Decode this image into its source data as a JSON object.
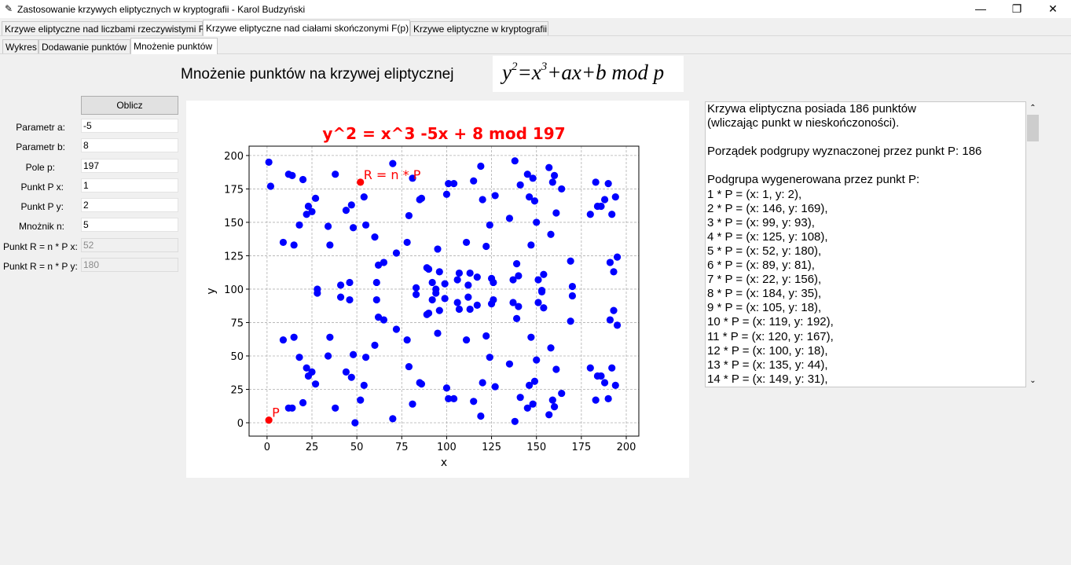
{
  "window": {
    "title": "Zastosowanie krzywych eliptycznych w kryptografii - Karol Budzyński",
    "minimize_glyph": "—",
    "maximize_glyph": "❐",
    "close_glyph": "✕"
  },
  "tabs": [
    {
      "label": "Krzywe eliptyczne nad liczbami rzeczywistymi R"
    },
    {
      "label": "Krzywe eliptyczne nad ciałami skończonymi F(p)"
    },
    {
      "label": "Krzywe eliptyczne w kryptografii"
    }
  ],
  "subtabs": [
    {
      "label": "Wykres"
    },
    {
      "label": "Dodawanie punktów"
    },
    {
      "label": "Mnożenie punktów"
    }
  ],
  "heading": "Mnożenie punktów na krzywej eliptycznej",
  "formula": {
    "y": "y",
    "y_exp": "2",
    "eq": "=",
    "x": "x",
    "x_exp": "3",
    "rest": "+ax+b mod p"
  },
  "compute_button": "Oblicz",
  "params": [
    {
      "label": "Parametr a:",
      "value": "-5"
    },
    {
      "label": "Parametr b:",
      "value": "8"
    },
    {
      "label": "Pole p:",
      "value": "197"
    },
    {
      "label": "Punkt P  x:",
      "value": "1"
    },
    {
      "label": "Punkt P  y:",
      "value": "2"
    },
    {
      "label": "Mnożnik n:",
      "value": "5"
    },
    {
      "label": "Punkt R = n * P  x:",
      "value": "52"
    },
    {
      "label": "Punkt R = n * P  y:",
      "value": "180"
    }
  ],
  "output_lines": [
    "Krzywa eliptyczna posiada 186 punktów",
    "(wliczając punkt w nieskończoności).",
    "",
    "Porządek podgrupy wyznaczonej przez punkt P: 186",
    "",
    "Podgrupa wygenerowana przez punkt P:",
    "1 * P = (x: 1, y: 2),",
    "2 * P = (x: 146, y: 169),",
    "3 * P = (x: 99, y: 93),",
    "4 * P = (x: 125, y: 108),",
    "5 * P = (x: 52, y: 180),",
    "6 * P = (x: 89, y: 81),",
    "7 * P = (x: 22, y: 156),",
    "8 * P = (x: 184, y: 35),",
    "9 * P = (x: 105, y: 18),",
    "10 * P = (x: 119, y: 192),",
    "11 * P = (x: 120, y: 167),",
    "12 * P = (x: 100, y: 18),",
    "13 * P = (x: 135, y: 44),",
    "14 * P = (x: 149, y: 31),"
  ],
  "chart_data": {
    "type": "scatter",
    "title": "y^2 = x^3 -5x + 8 mod 197",
    "title_color": "#ff0000",
    "xlabel": "x",
    "ylabel": "y",
    "xlim": [
      -10,
      207
    ],
    "ylim": [
      -10,
      207
    ],
    "xticks": [
      0,
      25,
      50,
      75,
      100,
      125,
      150,
      175,
      200
    ],
    "yticks": [
      0,
      25,
      50,
      75,
      100,
      125,
      150,
      175,
      200
    ],
    "grid": true,
    "point_color": "#0000ff",
    "highlight_color": "#ff0000",
    "points": [
      [
        1,
        195
      ],
      [
        2,
        177
      ],
      [
        9,
        62
      ],
      [
        9,
        135
      ],
      [
        12,
        186
      ],
      [
        12,
        11
      ],
      [
        14,
        185
      ],
      [
        14,
        11
      ],
      [
        15,
        64
      ],
      [
        15,
        133
      ],
      [
        18,
        49
      ],
      [
        18,
        148
      ],
      [
        20,
        182
      ],
      [
        20,
        15
      ],
      [
        22,
        41
      ],
      [
        22,
        156
      ],
      [
        23,
        162
      ],
      [
        23,
        35
      ],
      [
        25,
        38
      ],
      [
        25,
        158
      ],
      [
        27,
        168
      ],
      [
        27,
        29
      ],
      [
        28,
        100
      ],
      [
        28,
        97
      ],
      [
        34,
        147
      ],
      [
        34,
        50
      ],
      [
        35,
        64
      ],
      [
        35,
        133
      ],
      [
        38,
        11
      ],
      [
        38,
        186
      ],
      [
        41,
        103
      ],
      [
        41,
        94
      ],
      [
        44,
        159
      ],
      [
        44,
        38
      ],
      [
        46,
        92
      ],
      [
        46,
        105
      ],
      [
        47,
        163
      ],
      [
        47,
        34
      ],
      [
        48,
        146
      ],
      [
        48,
        51
      ],
      [
        49,
        0
      ],
      [
        52,
        17
      ],
      [
        54,
        169
      ],
      [
        54,
        28
      ],
      [
        55,
        148
      ],
      [
        55,
        49
      ],
      [
        60,
        58
      ],
      [
        60,
        139
      ],
      [
        61,
        92
      ],
      [
        61,
        105
      ],
      [
        62,
        79
      ],
      [
        62,
        118
      ],
      [
        65,
        120
      ],
      [
        65,
        77
      ],
      [
        70,
        3
      ],
      [
        70,
        194
      ],
      [
        72,
        70
      ],
      [
        72,
        127
      ],
      [
        78,
        62
      ],
      [
        78,
        135
      ],
      [
        79,
        155
      ],
      [
        79,
        42
      ],
      [
        81,
        183
      ],
      [
        81,
        14
      ],
      [
        83,
        101
      ],
      [
        83,
        96
      ],
      [
        85,
        167
      ],
      [
        85,
        30
      ],
      [
        86,
        168
      ],
      [
        86,
        29
      ],
      [
        89,
        81
      ],
      [
        89,
        116
      ],
      [
        90,
        115
      ],
      [
        90,
        82
      ],
      [
        92,
        105
      ],
      [
        92,
        92
      ],
      [
        94,
        97
      ],
      [
        94,
        100
      ],
      [
        95,
        67
      ],
      [
        95,
        130
      ],
      [
        96,
        113
      ],
      [
        96,
        84
      ],
      [
        99,
        93
      ],
      [
        99,
        104
      ],
      [
        100,
        26
      ],
      [
        100,
        171
      ],
      [
        101,
        179
      ],
      [
        101,
        18
      ],
      [
        104,
        18
      ],
      [
        104,
        179
      ],
      [
        106,
        107
      ],
      [
        106,
        90
      ],
      [
        107,
        85
      ],
      [
        107,
        112
      ],
      [
        111,
        62
      ],
      [
        111,
        135
      ],
      [
        112,
        103
      ],
      [
        112,
        94
      ],
      [
        113,
        85
      ],
      [
        113,
        112
      ],
      [
        115,
        181
      ],
      [
        115,
        16
      ],
      [
        117,
        109
      ],
      [
        117,
        88
      ],
      [
        119,
        5
      ],
      [
        119,
        192
      ],
      [
        120,
        167
      ],
      [
        120,
        30
      ],
      [
        122,
        65
      ],
      [
        122,
        132
      ],
      [
        124,
        148
      ],
      [
        124,
        49
      ],
      [
        125,
        108
      ],
      [
        125,
        89
      ],
      [
        126,
        92
      ],
      [
        126,
        105
      ],
      [
        127,
        27
      ],
      [
        127,
        170
      ],
      [
        135,
        153
      ],
      [
        135,
        44
      ],
      [
        137,
        90
      ],
      [
        137,
        107
      ],
      [
        138,
        1
      ],
      [
        138,
        196
      ],
      [
        139,
        78
      ],
      [
        139,
        119
      ],
      [
        140,
        110
      ],
      [
        140,
        87
      ],
      [
        141,
        178
      ],
      [
        141,
        19
      ],
      [
        145,
        186
      ],
      [
        145,
        11
      ],
      [
        146,
        169
      ],
      [
        146,
        28
      ],
      [
        147,
        64
      ],
      [
        147,
        133
      ],
      [
        148,
        183
      ],
      [
        148,
        14
      ],
      [
        149,
        166
      ],
      [
        149,
        31
      ],
      [
        150,
        150
      ],
      [
        150,
        47
      ],
      [
        151,
        107
      ],
      [
        151,
        90
      ],
      [
        153,
        98
      ],
      [
        153,
        99
      ],
      [
        154,
        111
      ],
      [
        154,
        86
      ],
      [
        157,
        191
      ],
      [
        157,
        6
      ],
      [
        158,
        141
      ],
      [
        158,
        56
      ],
      [
        159,
        17
      ],
      [
        159,
        180
      ],
      [
        160,
        185
      ],
      [
        160,
        12
      ],
      [
        161,
        157
      ],
      [
        161,
        40
      ],
      [
        164,
        175
      ],
      [
        164,
        22
      ],
      [
        169,
        121
      ],
      [
        169,
        76
      ],
      [
        170,
        102
      ],
      [
        170,
        95
      ],
      [
        180,
        41
      ],
      [
        180,
        156
      ],
      [
        183,
        180
      ],
      [
        183,
        17
      ],
      [
        184,
        35
      ],
      [
        184,
        162
      ],
      [
        186,
        162
      ],
      [
        186,
        35
      ],
      [
        188,
        30
      ],
      [
        188,
        167
      ],
      [
        190,
        179
      ],
      [
        190,
        18
      ],
      [
        191,
        120
      ],
      [
        191,
        77
      ],
      [
        192,
        41
      ],
      [
        192,
        156
      ],
      [
        193,
        84
      ],
      [
        193,
        113
      ],
      [
        194,
        28
      ],
      [
        194,
        169
      ],
      [
        195,
        124
      ],
      [
        195,
        73
      ]
    ],
    "highlight_points": [
      {
        "label": "P",
        "x": 1,
        "y": 2
      },
      {
        "label": "R = n * P",
        "x": 52,
        "y": 180
      }
    ]
  }
}
